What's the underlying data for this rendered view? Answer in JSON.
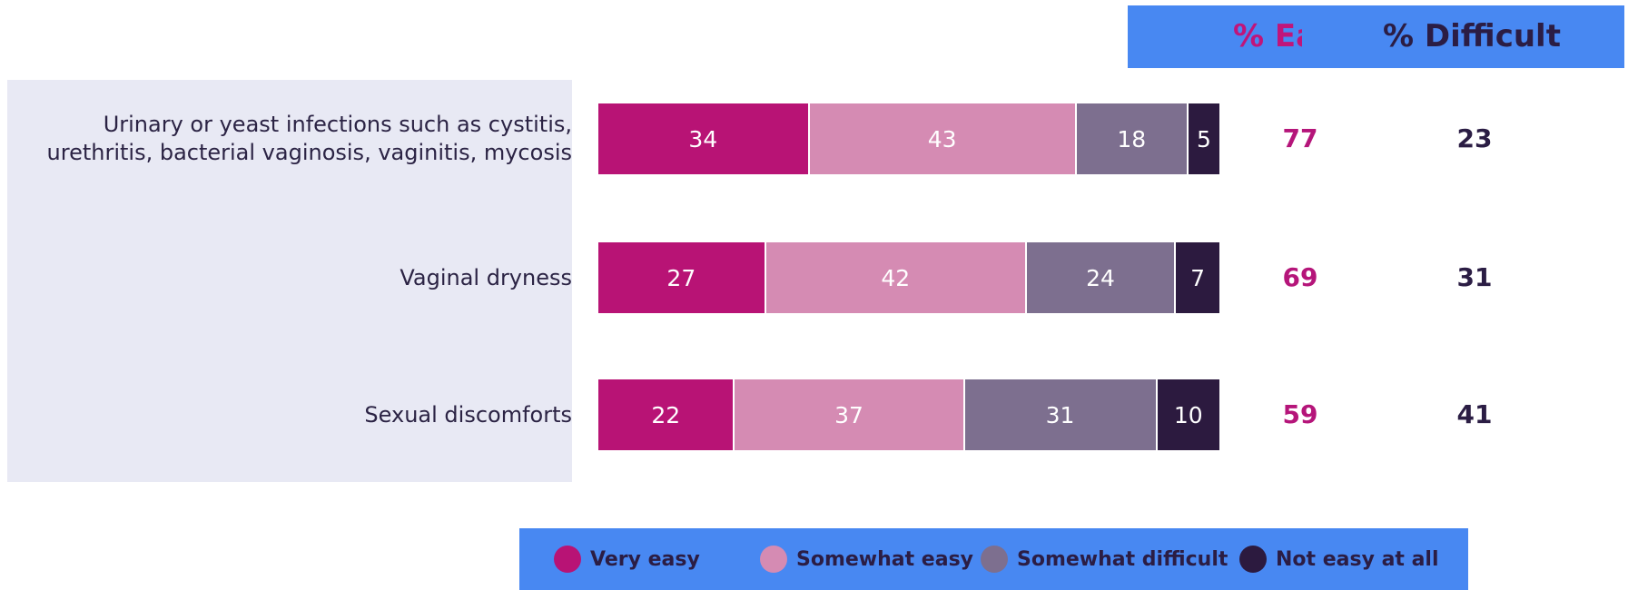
{
  "chart_data": {
    "type": "bar",
    "orientation": "horizontal",
    "stacked": true,
    "categories": [
      [
        "Urinary or yeast infections such as cystitis,",
        "urethritis, bacterial vaginosis, vaginitis, mycosis"
      ],
      [
        "Vaginal dryness"
      ],
      [
        "Sexual discomforts"
      ]
    ],
    "series": [
      {
        "name": "Very easy",
        "color": "#b81375",
        "values": [
          34,
          27,
          22
        ]
      },
      {
        "name": "Somewhat easy",
        "color": "#d58bb3",
        "values": [
          43,
          42,
          37
        ]
      },
      {
        "name": "Somewhat difficult",
        "color": "#7d6f8f",
        "values": [
          18,
          24,
          31
        ]
      },
      {
        "name": "Not easy at all",
        "color": "#2c1a3f",
        "values": [
          5,
          7,
          10
        ]
      }
    ],
    "summary_columns": [
      {
        "header": "% Easy",
        "color": "#b5157a",
        "values": [
          77,
          69,
          59
        ]
      },
      {
        "header": "% Difficult",
        "color": "#2b1d44",
        "values": [
          23,
          31,
          41
        ]
      }
    ],
    "xlim": [
      0,
      100
    ],
    "legend_position": "bottom",
    "grid": false
  }
}
